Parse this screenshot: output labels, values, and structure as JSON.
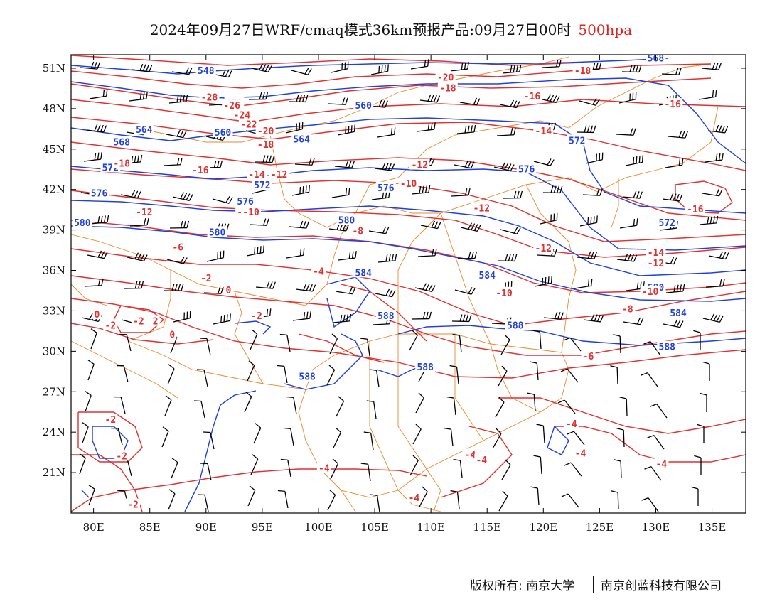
{
  "title": {
    "main": "2024年09月27日WRF/cmaq模式36km预报产品:09月27日00时",
    "level": "500hpa"
  },
  "axes": {
    "lon_ticks": [
      "80E",
      "85E",
      "90E",
      "95E",
      "100E",
      "105E",
      "110E",
      "115E",
      "120E",
      "125E",
      "130E",
      "135E"
    ],
    "lat_ticks": [
      "51N",
      "48N",
      "45N",
      "42N",
      "39N",
      "36N",
      "33N",
      "30N",
      "27N",
      "24N",
      "21N"
    ],
    "lon_range": [
      78,
      138
    ],
    "lat_range": [
      18,
      52
    ]
  },
  "colors": {
    "height_contour": "#1f3fe0",
    "temperature_contour": "#e03030",
    "border": "#e8892a",
    "wind_barb": "#000000",
    "frame": "#000000"
  },
  "height_labels": [
    {
      "text": "548",
      "lon": 90,
      "lat": 50.8
    },
    {
      "text": "552",
      "lon": 92.5,
      "lat": 48.4
    },
    {
      "text": "560",
      "lon": 104,
      "lat": 48.2
    },
    {
      "text": "564",
      "lon": 84.5,
      "lat": 46.4
    },
    {
      "text": "560",
      "lon": 91.5,
      "lat": 46.2
    },
    {
      "text": "568",
      "lon": 82.5,
      "lat": 45.5
    },
    {
      "text": "564",
      "lon": 98.5,
      "lat": 45.7
    },
    {
      "text": "572",
      "lon": 81.5,
      "lat": 43.6
    },
    {
      "text": "572",
      "lon": 95,
      "lat": 42.3
    },
    {
      "text": "576",
      "lon": 80.5,
      "lat": 41.7
    },
    {
      "text": "576",
      "lon": 93.5,
      "lat": 41.1
    },
    {
      "text": "576",
      "lon": 106,
      "lat": 42.1
    },
    {
      "text": "580",
      "lon": 79,
      "lat": 39.5
    },
    {
      "text": "580",
      "lon": 91,
      "lat": 38.8
    },
    {
      "text": "580",
      "lon": 102.5,
      "lat": 39.7
    },
    {
      "text": "584",
      "lon": 104,
      "lat": 35.8
    },
    {
      "text": "584",
      "lon": 115,
      "lat": 35.6
    },
    {
      "text": "588",
      "lon": 106,
      "lat": 32.6
    },
    {
      "text": "588",
      "lon": 117.5,
      "lat": 31.9
    },
    {
      "text": "588",
      "lon": 99,
      "lat": 28.1
    },
    {
      "text": "588",
      "lon": 109.5,
      "lat": 28.8
    },
    {
      "text": "580",
      "lon": 130,
      "lat": 34.7
    },
    {
      "text": "572",
      "lon": 131,
      "lat": 39.5
    },
    {
      "text": "572",
      "lon": 123,
      "lat": 45.6
    },
    {
      "text": "568",
      "lon": 130,
      "lat": 51.7
    },
    {
      "text": "576",
      "lon": 118.5,
      "lat": 43.5
    },
    {
      "text": "588",
      "lon": 131,
      "lat": 30.3
    },
    {
      "text": "584",
      "lon": 132,
      "lat": 32.8
    }
  ],
  "temperature_labels": [
    {
      "text": "-28",
      "lon": 90.3,
      "lat": 48.8
    },
    {
      "text": "-26",
      "lon": 92.3,
      "lat": 48.2
    },
    {
      "text": "-24",
      "lon": 93.2,
      "lat": 47.5
    },
    {
      "text": "-22",
      "lon": 93.8,
      "lat": 46.8
    },
    {
      "text": "-20",
      "lon": 95.3,
      "lat": 46.3
    },
    {
      "text": "-18",
      "lon": 95.3,
      "lat": 45.3
    },
    {
      "text": "-18",
      "lon": 82.5,
      "lat": 43.9
    },
    {
      "text": "-16",
      "lon": 89.5,
      "lat": 43.4
    },
    {
      "text": "-14",
      "lon": 94.5,
      "lat": 43.1
    },
    {
      "text": "-12",
      "lon": 96.5,
      "lat": 43.1
    },
    {
      "text": "-12",
      "lon": 84.5,
      "lat": 40.3
    },
    {
      "text": "-12",
      "lon": 93.5,
      "lat": 40.3
    },
    {
      "text": "-10",
      "lon": 94,
      "lat": 40.3
    },
    {
      "text": "-20",
      "lon": 111.3,
      "lat": 50.3
    },
    {
      "text": "-18",
      "lon": 111.5,
      "lat": 49.5
    },
    {
      "text": "-16",
      "lon": 119,
      "lat": 48.9
    },
    {
      "text": "-18",
      "lon": 123.5,
      "lat": 50.8
    },
    {
      "text": "-16",
      "lon": 131.5,
      "lat": 48.3
    },
    {
      "text": "-14",
      "lon": 120,
      "lat": 46.3
    },
    {
      "text": "-12",
      "lon": 109,
      "lat": 43.8
    },
    {
      "text": "-10",
      "lon": 108,
      "lat": 42.4
    },
    {
      "text": "-12",
      "lon": 114.5,
      "lat": 40.6
    },
    {
      "text": "-12",
      "lon": 120,
      "lat": 37.6
    },
    {
      "text": "-8",
      "lon": 103.5,
      "lat": 38.9
    },
    {
      "text": "-6",
      "lon": 87.5,
      "lat": 37.7
    },
    {
      "text": "-4",
      "lon": 100,
      "lat": 35.9
    },
    {
      "text": "-2",
      "lon": 90,
      "lat": 35.4
    },
    {
      "text": "0",
      "lon": 92,
      "lat": 34.5
    },
    {
      "text": "-2",
      "lon": 84,
      "lat": 32.2
    },
    {
      "text": "2",
      "lon": 85.5,
      "lat": 32.2
    },
    {
      "text": "0",
      "lon": 87,
      "lat": 31.2
    },
    {
      "text": "0",
      "lon": 80.3,
      "lat": 32.7
    },
    {
      "text": "-2",
      "lon": 81.5,
      "lat": 31.9
    },
    {
      "text": "-2",
      "lon": 94.5,
      "lat": 32.6
    },
    {
      "text": "-16",
      "lon": 133.5,
      "lat": 40.5
    },
    {
      "text": "-14",
      "lon": 130,
      "lat": 37.3
    },
    {
      "text": "-12",
      "lon": 130,
      "lat": 36.5
    },
    {
      "text": "-10",
      "lon": 116.5,
      "lat": 34.3
    },
    {
      "text": "-10",
      "lon": 129.5,
      "lat": 34.4
    },
    {
      "text": "-8",
      "lon": 127.5,
      "lat": 33.1
    },
    {
      "text": "-6",
      "lon": 124,
      "lat": 29.6
    },
    {
      "text": "-4",
      "lon": 122.5,
      "lat": 24.6
    },
    {
      "text": "-4",
      "lon": 123.3,
      "lat": 22.4
    },
    {
      "text": "-4",
      "lon": 130.5,
      "lat": 21.6
    },
    {
      "text": "-4",
      "lon": 113.5,
      "lat": 22.3
    },
    {
      "text": "-4",
      "lon": 114.5,
      "lat": 21.9
    },
    {
      "text": "-4",
      "lon": 100.5,
      "lat": 21.3
    },
    {
      "text": "-4",
      "lon": 108.5,
      "lat": 19.1
    },
    {
      "text": "-2",
      "lon": 81.5,
      "lat": 24.9
    },
    {
      "text": "-2",
      "lon": 82.5,
      "lat": 22.2
    },
    {
      "text": "-2",
      "lon": 83.5,
      "lat": 18.6
    }
  ],
  "footer": {
    "copyright": "版权所有: 南京大学",
    "company": "南京创蓝科技有限公司"
  }
}
